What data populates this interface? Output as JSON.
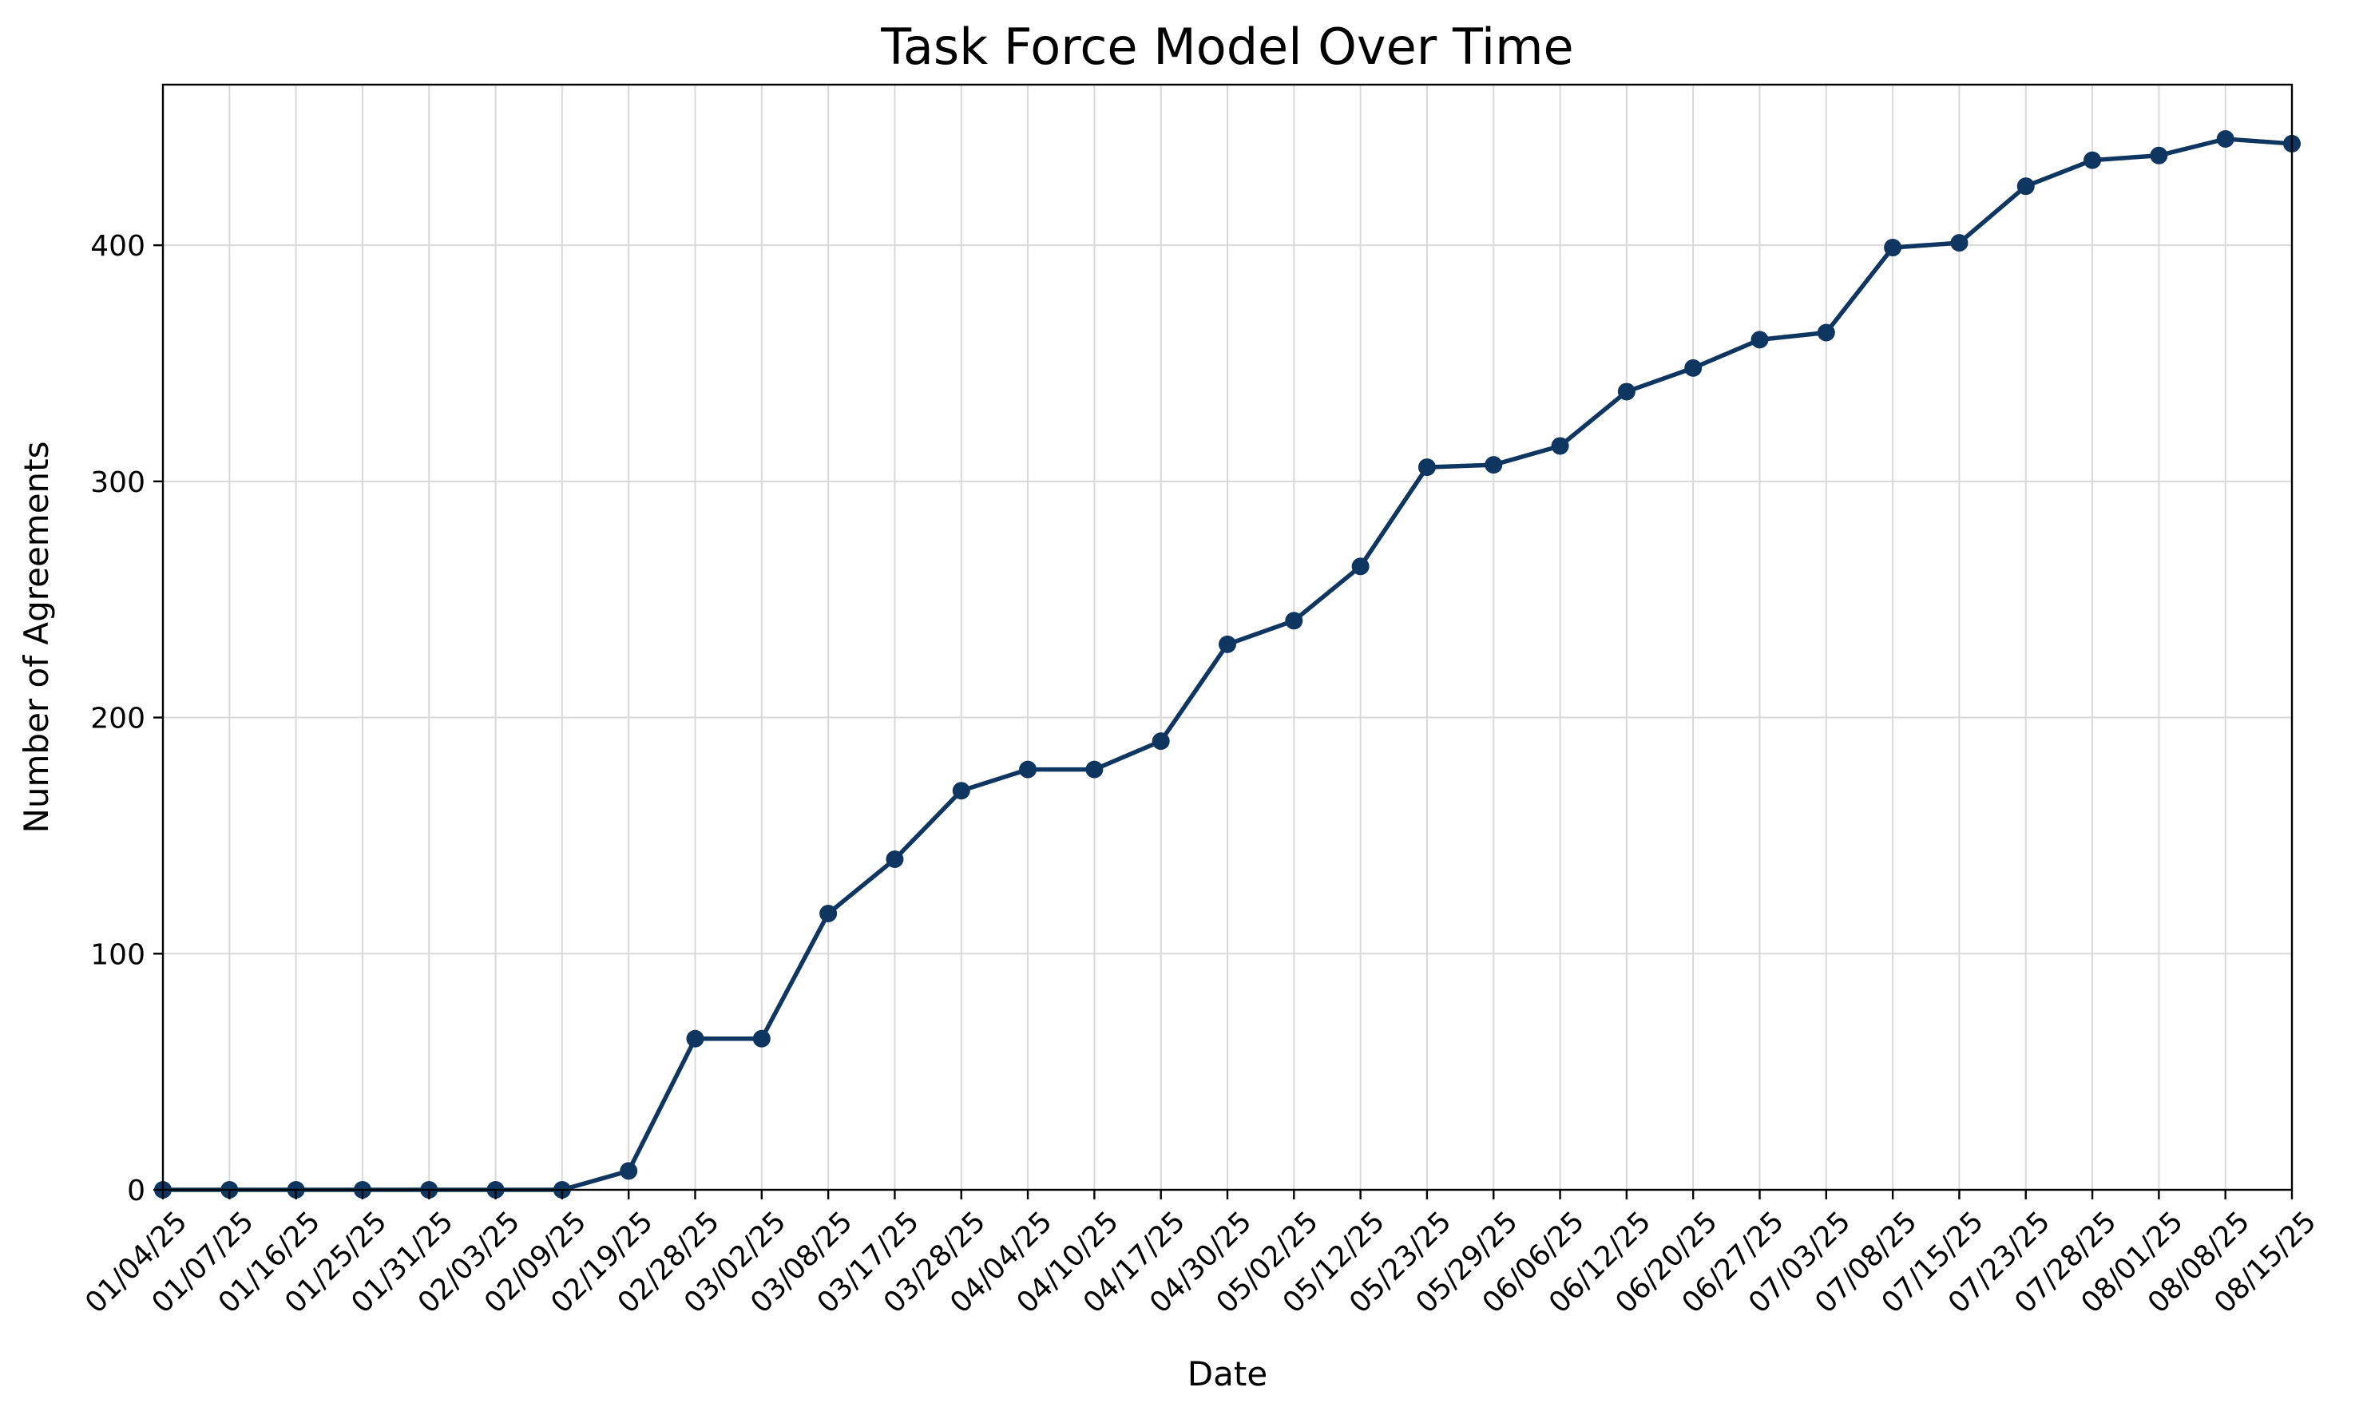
{
  "chart_data": {
    "type": "line",
    "title": "Task Force Model Over Time",
    "xlabel": "Date",
    "ylabel": "Number of Agreements",
    "categories": [
      "01/04/25",
      "01/07/25",
      "01/16/25",
      "01/25/25",
      "01/31/25",
      "02/03/25",
      "02/09/25",
      "02/19/25",
      "02/28/25",
      "03/02/25",
      "03/08/25",
      "03/17/25",
      "03/28/25",
      "04/04/25",
      "04/10/25",
      "04/17/25",
      "04/30/25",
      "05/02/25",
      "05/12/25",
      "05/23/25",
      "05/29/25",
      "06/06/25",
      "06/12/25",
      "06/20/25",
      "06/27/25",
      "07/03/25",
      "07/08/25",
      "07/15/25",
      "07/23/25",
      "07/28/25",
      "08/01/25",
      "08/08/25",
      "08/15/25"
    ],
    "series": [
      {
        "values": [
          0,
          0,
          0,
          0,
          0,
          0,
          0,
          8,
          64,
          64,
          117,
          140,
          169,
          178,
          178,
          190,
          231,
          241,
          264,
          306,
          307,
          315,
          338,
          348,
          360,
          363,
          399,
          401,
          425,
          436,
          438,
          445,
          443
        ],
        "color": "#0e3660",
        "marker": "circle"
      }
    ],
    "ylim": [
      0,
      468
    ],
    "yticks": [
      0,
      100,
      200,
      300,
      400
    ],
    "grid": true,
    "legend": "none"
  }
}
